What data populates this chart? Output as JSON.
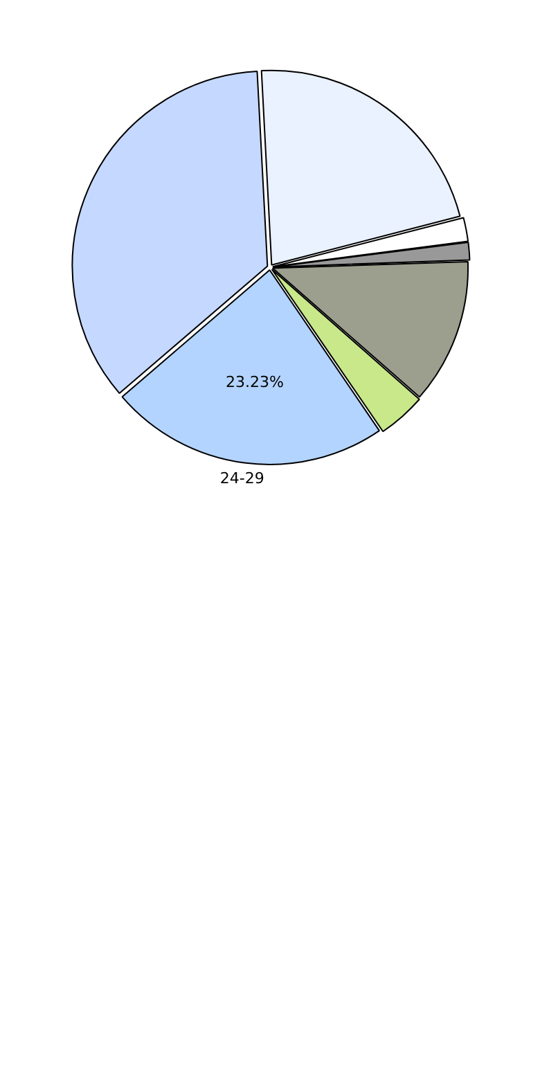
{
  "chart_data": {
    "type": "pie",
    "categories": [
      null,
      null,
      null,
      null,
      null,
      "24-29",
      null
    ],
    "values": [
      21.8,
      2,
      1.5,
      12,
      4,
      23.23,
      35.47
    ],
    "colors": [
      "#eaf1ff",
      "#ffffff",
      "#999999",
      "#9c9f8e",
      "#c8e88a",
      "#b3d4ff",
      "#c5d8ff"
    ],
    "value_labels": [
      null,
      null,
      null,
      null,
      null,
      "23.23%",
      null
    ]
  }
}
